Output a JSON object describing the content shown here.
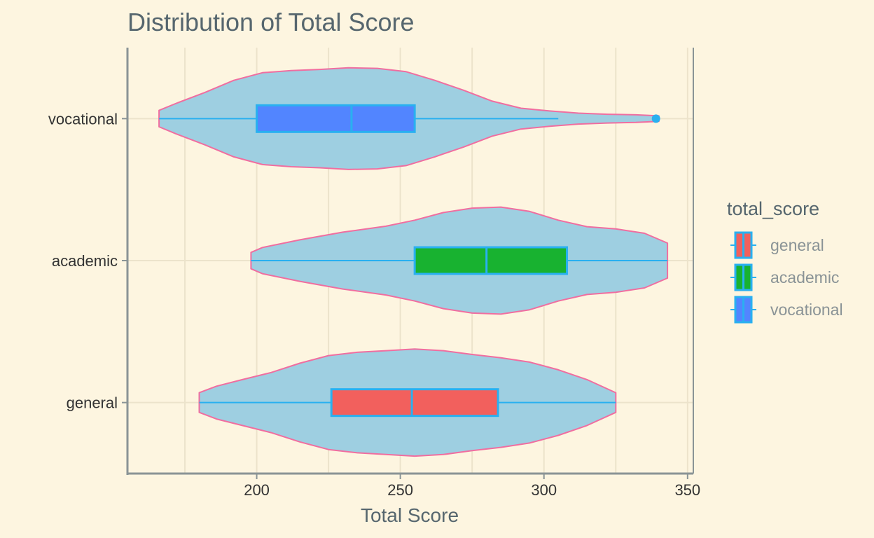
{
  "chart_data": {
    "type": "violin",
    "title": "Distribution of Total Score",
    "xlabel": "Total Score",
    "ylabel": "",
    "xlim": [
      155,
      352
    ],
    "x_ticks": [
      200,
      250,
      300,
      350
    ],
    "categories": [
      "vocational",
      "academic",
      "general"
    ],
    "grid": true,
    "legend": {
      "title": "total_score",
      "placement": "right",
      "entries": [
        "general",
        "academic",
        "vocational"
      ]
    },
    "colors": {
      "background": "#fdf5e0",
      "violin_fill": "#9ecfe1",
      "violin_stroke": "#f06ea0",
      "box_stroke": "#29b0f0",
      "grid": "#ece3cb",
      "axis": "#8a9496",
      "general": "#f2605d",
      "academic": "#18b230",
      "vocational": "#5285ff"
    },
    "series": [
      {
        "name": "general",
        "box": {
          "min": 180,
          "q1": 226,
          "median": 254,
          "q3": 284,
          "max": 325
        },
        "outliers": [],
        "density": [
          [
            180,
            0.18
          ],
          [
            186,
            0.3
          ],
          [
            195,
            0.42
          ],
          [
            205,
            0.55
          ],
          [
            215,
            0.72
          ],
          [
            225,
            0.86
          ],
          [
            235,
            0.92
          ],
          [
            245,
            0.95
          ],
          [
            255,
            0.98
          ],
          [
            265,
            0.95
          ],
          [
            275,
            0.88
          ],
          [
            285,
            0.82
          ],
          [
            295,
            0.74
          ],
          [
            305,
            0.6
          ],
          [
            315,
            0.42
          ],
          [
            325,
            0.18
          ]
        ]
      },
      {
        "name": "academic",
        "box": {
          "min": 198,
          "q1": 255,
          "median": 280,
          "q3": 308,
          "max": 343
        },
        "outliers": [],
        "density": [
          [
            198,
            0.15
          ],
          [
            202,
            0.24
          ],
          [
            215,
            0.38
          ],
          [
            230,
            0.52
          ],
          [
            245,
            0.63
          ],
          [
            255,
            0.74
          ],
          [
            265,
            0.88
          ],
          [
            275,
            0.96
          ],
          [
            285,
            0.98
          ],
          [
            295,
            0.9
          ],
          [
            305,
            0.74
          ],
          [
            315,
            0.62
          ],
          [
            325,
            0.58
          ],
          [
            335,
            0.5
          ],
          [
            343,
            0.32
          ]
        ]
      },
      {
        "name": "vocational",
        "box": {
          "min": 166,
          "q1": 200,
          "median": 233,
          "q3": 255,
          "max": 305
        },
        "outliers": [
          339
        ],
        "density": [
          [
            166,
            0.15
          ],
          [
            172,
            0.28
          ],
          [
            182,
            0.48
          ],
          [
            192,
            0.7
          ],
          [
            202,
            0.84
          ],
          [
            212,
            0.88
          ],
          [
            222,
            0.9
          ],
          [
            232,
            0.93
          ],
          [
            242,
            0.92
          ],
          [
            252,
            0.86
          ],
          [
            262,
            0.7
          ],
          [
            272,
            0.52
          ],
          [
            282,
            0.32
          ],
          [
            292,
            0.19
          ],
          [
            302,
            0.14
          ],
          [
            312,
            0.1
          ],
          [
            322,
            0.08
          ],
          [
            332,
            0.07
          ],
          [
            340,
            0.05
          ]
        ]
      }
    ]
  }
}
